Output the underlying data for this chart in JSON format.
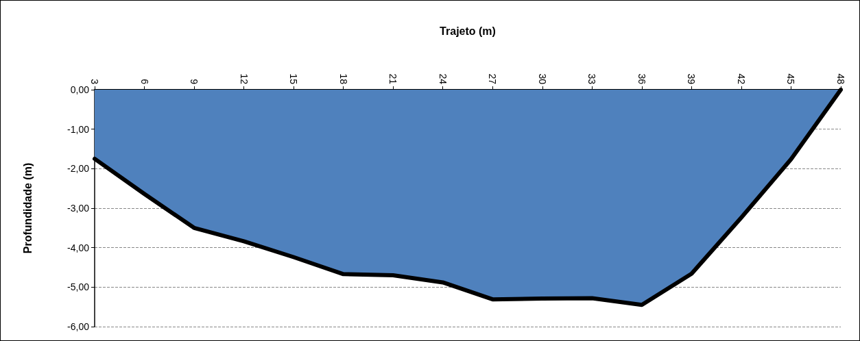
{
  "chart_data": {
    "type": "area",
    "xlabel": "Trajeto (m)",
    "ylabel": "Profundidade (m)",
    "categories": [
      "3",
      "6",
      "9",
      "12",
      "15",
      "18",
      "21",
      "24",
      "27",
      "30",
      "33",
      "36",
      "39",
      "42",
      "45",
      "48"
    ],
    "series": [
      {
        "color": "#4f81bd",
        "values": [
          -1.75,
          -2.64,
          -3.5,
          -3.84,
          -4.24,
          -4.67,
          -4.7,
          -4.88,
          -5.31,
          -5.29,
          -5.28,
          -5.45,
          -4.66,
          -3.24,
          -1.76,
          0
        ]
      }
    ],
    "ylim": [
      -6,
      0
    ],
    "yticks": [
      {
        "value": -6,
        "label": "-6,00"
      },
      {
        "value": -5,
        "label": "-5,00"
      },
      {
        "value": -4,
        "label": "-4,00"
      },
      {
        "value": -3,
        "label": "-3,00"
      },
      {
        "value": -2,
        "label": "-2,00"
      },
      {
        "value": -1,
        "label": "-1,00"
      },
      {
        "value": 0,
        "label": "0,00"
      }
    ],
    "grid": "y",
    "marker": "none"
  }
}
